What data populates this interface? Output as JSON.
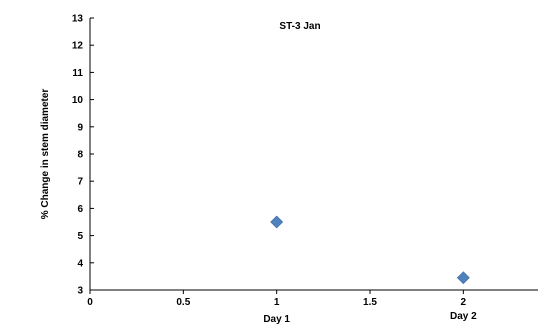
{
  "chart_data": {
    "type": "scatter",
    "title": "ST-3 Jan",
    "xlabel": "",
    "ylabel": "% Change in stem diameter",
    "xlim": [
      0,
      2.4
    ],
    "ylim": [
      3,
      13
    ],
    "x_ticks": [
      "0",
      "0.5",
      "1",
      "1.5",
      "2"
    ],
    "y_ticks": [
      "3",
      "4",
      "5",
      "6",
      "7",
      "8",
      "9",
      "10",
      "11",
      "12",
      "13"
    ],
    "grid": false,
    "legend": "none",
    "marker_color": "#4f81bd",
    "series": [
      {
        "x": [
          1,
          2
        ],
        "y": [
          5.5,
          3.45
        ]
      }
    ],
    "annotations": [
      {
        "text": "Day 1",
        "x": 1
      },
      {
        "text": "Day 2",
        "x": 2
      }
    ]
  }
}
